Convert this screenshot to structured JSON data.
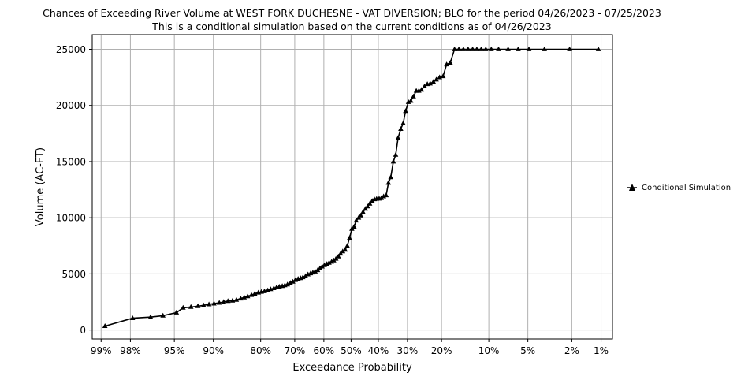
{
  "figure": {
    "title": "Chances of Exceeding River Volume at WEST FORK DUCHESNE - VAT DIVERSION; BLO for the period 04/26/2023 - 07/25/2023",
    "subtitle": "This is a conditional simulation based on the current conditions as of 04/26/2023"
  },
  "chart_data": {
    "type": "line",
    "title": "Chances of Exceeding River Volume at WEST FORK DUCHESNE - VAT DIVERSION; BLO for the period 04/26/2023 - 07/25/2023",
    "subtitle": "This is a conditional simulation based on the current conditions as of 04/26/2023",
    "xlabel": "Exceedance Probability",
    "ylabel": "Volume (AC-FT)",
    "x_scale": "normal-probability (reversed: 99% on left, 1% on right)",
    "xlim": [
      99.2,
      0.75
    ],
    "ylim": [
      -800,
      26300
    ],
    "x_ticks": [
      {
        "value": 99,
        "label": "99%"
      },
      {
        "value": 98,
        "label": "98%"
      },
      {
        "value": 95,
        "label": "95%"
      },
      {
        "value": 90,
        "label": "90%"
      },
      {
        "value": 80,
        "label": "80%"
      },
      {
        "value": 70,
        "label": "70%"
      },
      {
        "value": 60,
        "label": "60%"
      },
      {
        "value": 50,
        "label": "50%"
      },
      {
        "value": 40,
        "label": "40%"
      },
      {
        "value": 30,
        "label": "30%"
      },
      {
        "value": 20,
        "label": "20%"
      },
      {
        "value": 10,
        "label": "10%"
      },
      {
        "value": 5,
        "label": "5%"
      },
      {
        "value": 2,
        "label": "2%"
      },
      {
        "value": 1,
        "label": "1%"
      }
    ],
    "y_ticks": [
      {
        "value": 0,
        "label": "0"
      },
      {
        "value": 5000,
        "label": "5000"
      },
      {
        "value": 10000,
        "label": "10000"
      },
      {
        "value": 15000,
        "label": "15000"
      },
      {
        "value": 20000,
        "label": "20000"
      },
      {
        "value": 25000,
        "label": "25000"
      }
    ],
    "grid": true,
    "legend_position": "right of plot, centered vertically",
    "series": [
      {
        "name": "Conditional Simulation",
        "color": "#000000",
        "marker": "triangle",
        "x": [
          98.9,
          97.9,
          96.9,
          96.0,
          94.8,
          94.1,
          93.2,
          92.3,
          91.5,
          90.7,
          89.9,
          89.0,
          88.2,
          87.4,
          86.5,
          85.7,
          84.8,
          84.0,
          83.2,
          82.3,
          81.5,
          80.6,
          79.8,
          79.0,
          78.1,
          77.3,
          76.4,
          75.6,
          74.8,
          73.9,
          73.1,
          72.3,
          71.4,
          70.6,
          69.8,
          68.9,
          68.1,
          67.3,
          66.4,
          65.6,
          64.7,
          63.9,
          63.1,
          62.2,
          61.4,
          60.6,
          59.8,
          58.9,
          58.1,
          57.2,
          56.4,
          55.6,
          54.7,
          53.9,
          53.1,
          52.2,
          51.4,
          50.6,
          49.7,
          48.9,
          48.1,
          47.2,
          46.4,
          45.6,
          44.7,
          43.9,
          43.1,
          42.2,
          41.4,
          40.6,
          39.7,
          38.9,
          38.1,
          37.2,
          36.4,
          35.6,
          34.7,
          33.9,
          33.1,
          32.2,
          31.4,
          30.6,
          29.7,
          28.9,
          28.1,
          27.2,
          26.4,
          25.6,
          24.7,
          23.9,
          23.1,
          22.2,
          21.4,
          20.5,
          19.6,
          18.7,
          17.8,
          16.8,
          15.8,
          14.8,
          13.8,
          12.9,
          12.1,
          11.3,
          10.5,
          9.6,
          8.5,
          7.2,
          6.0,
          4.9,
          3.6,
          2.1,
          1.07
        ],
        "y": [
          350,
          1050,
          1150,
          1280,
          1550,
          1980,
          2050,
          2120,
          2200,
          2280,
          2350,
          2420,
          2500,
          2580,
          2620,
          2680,
          2800,
          2900,
          3000,
          3120,
          3230,
          3330,
          3400,
          3450,
          3530,
          3630,
          3720,
          3800,
          3860,
          3920,
          3980,
          4050,
          4200,
          4300,
          4450,
          4560,
          4620,
          4700,
          4800,
          4950,
          5050,
          5120,
          5200,
          5330,
          5500,
          5650,
          5780,
          5880,
          5980,
          6080,
          6200,
          6350,
          6550,
          6800,
          7000,
          7150,
          7500,
          8200,
          9000,
          9200,
          9750,
          10000,
          10200,
          10500,
          10800,
          11000,
          11250,
          11500,
          11650,
          11680,
          11700,
          11750,
          11900,
          12000,
          13100,
          13600,
          15000,
          15600,
          17100,
          17900,
          18400,
          19500,
          20300,
          20400,
          20800,
          21300,
          21300,
          21400,
          21700,
          21900,
          21950,
          22100,
          22300,
          22500,
          22600,
          23650,
          23800,
          25000,
          25000,
          25000,
          25000,
          25000,
          25000,
          25000,
          25000,
          25000,
          25000,
          25000,
          25000,
          25000,
          25000,
          25000,
          25000
        ]
      }
    ]
  },
  "legend": {
    "label": "Conditional Simulation"
  }
}
